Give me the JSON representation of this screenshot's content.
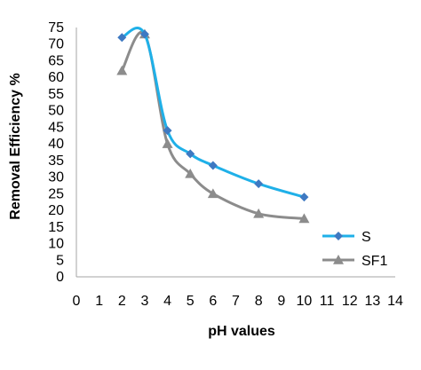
{
  "chart_data": {
    "type": "line",
    "xlabel": "pH values",
    "ylabel": "Removal  Efficiency  %",
    "xlim": [
      0,
      14
    ],
    "ylim": [
      0,
      75
    ],
    "x_ticks": [
      0,
      1,
      2,
      3,
      4,
      5,
      6,
      7,
      8,
      9,
      10,
      11,
      12,
      13,
      14
    ],
    "y_ticks": [
      0,
      5,
      10,
      15,
      20,
      25,
      30,
      35,
      40,
      45,
      50,
      55,
      60,
      65,
      70,
      75
    ],
    "smoothed": true,
    "grid": false,
    "legend_position": "right",
    "series": [
      {
        "name": "S",
        "color": "#1fb0e8",
        "marker": "diamond",
        "marker_color": "#3e79c2",
        "points": [
          {
            "x": 2,
            "y": 72
          },
          {
            "x": 3,
            "y": 73
          },
          {
            "x": 4,
            "y": 44
          },
          {
            "x": 5,
            "y": 37
          },
          {
            "x": 6,
            "y": 33.5
          },
          {
            "x": 8,
            "y": 28
          },
          {
            "x": 10,
            "y": 24
          }
        ]
      },
      {
        "name": "SF1",
        "color": "#8c8c8c",
        "marker": "triangle",
        "marker_color": "#8c8c8c",
        "points": [
          {
            "x": 2,
            "y": 62
          },
          {
            "x": 3,
            "y": 73
          },
          {
            "x": 4,
            "y": 40
          },
          {
            "x": 5,
            "y": 31
          },
          {
            "x": 6,
            "y": 25
          },
          {
            "x": 8,
            "y": 19
          },
          {
            "x": 10,
            "y": 17.5
          }
        ]
      }
    ]
  }
}
